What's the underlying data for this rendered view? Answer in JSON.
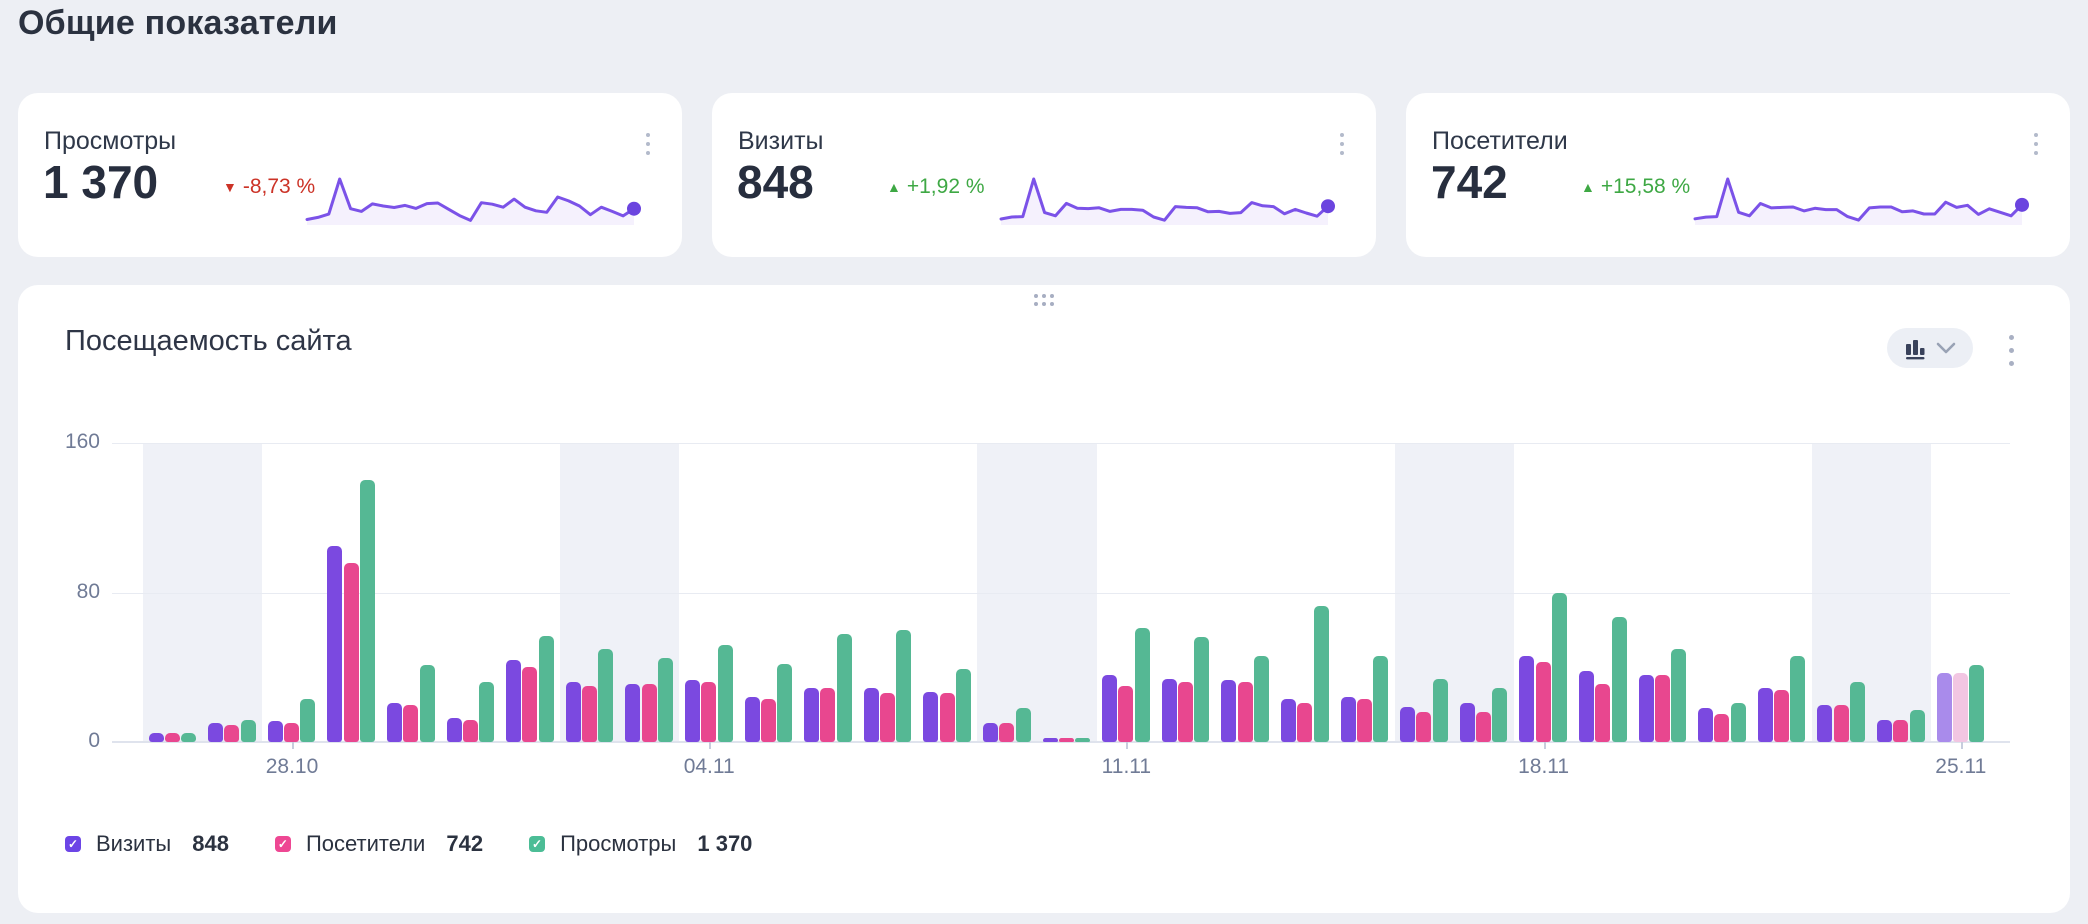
{
  "page": {
    "title": "Общие показатели"
  },
  "cards": [
    {
      "label": "Просмотры",
      "value": "1 370",
      "delta": "-8,73 %",
      "direction": "down",
      "spark_series": "Просмотры"
    },
    {
      "label": "Визиты",
      "value": "848",
      "delta": "+1,92 %",
      "direction": "up",
      "spark_series": "Визиты"
    },
    {
      "label": "Посетители",
      "value": "742",
      "delta": "+15,58 %",
      "direction": "up",
      "spark_series": "Посетители"
    }
  ],
  "panel": {
    "title": "Посещаемость сайта"
  },
  "legend": [
    {
      "label": "Визиты",
      "value": "848",
      "color": "#6C45E6"
    },
    {
      "label": "Посетители",
      "value": "742",
      "color": "#EE4793"
    },
    {
      "label": "Просмотры",
      "value": "1 370",
      "color": "#4CBD96"
    }
  ],
  "chart_data": {
    "type": "bar",
    "title": "Посещаемость сайта",
    "categories": [
      "26.10",
      "27.10",
      "28.10",
      "29.10",
      "30.10",
      "31.10",
      "01.11",
      "02.11",
      "03.11",
      "04.11",
      "05.11",
      "06.11",
      "07.11",
      "08.11",
      "09.11",
      "10.11",
      "11.11",
      "12.11",
      "13.11",
      "14.11",
      "15.11",
      "16.11",
      "17.11",
      "18.11",
      "19.11",
      "20.11",
      "21.11",
      "22.11",
      "23.11",
      "24.11",
      "25.11"
    ],
    "series": [
      {
        "name": "Визиты",
        "color": "#7B49E0",
        "values": [
          5,
          10,
          11,
          105,
          21,
          13,
          44,
          32,
          31,
          33,
          24,
          29,
          29,
          27,
          10,
          2,
          36,
          34,
          33,
          23,
          24,
          19,
          21,
          46,
          38,
          36,
          18,
          29,
          20,
          12,
          37
        ]
      },
      {
        "name": "Посетители",
        "color": "#E8478F",
        "values": [
          5,
          9,
          10,
          96,
          20,
          12,
          40,
          30,
          31,
          32,
          23,
          29,
          26,
          26,
          10,
          2,
          30,
          32,
          32,
          21,
          23,
          16,
          16,
          43,
          31,
          36,
          15,
          28,
          20,
          12,
          37
        ]
      },
      {
        "name": "Просмотры",
        "color": "#55B894",
        "values": [
          5,
          12,
          23,
          140,
          41,
          32,
          57,
          50,
          45,
          52,
          42,
          58,
          60,
          39,
          18,
          2,
          61,
          56,
          46,
          73,
          46,
          34,
          29,
          80,
          67,
          50,
          21,
          46,
          32,
          17,
          41
        ]
      }
    ],
    "ylim": [
      0,
      160
    ],
    "yticks": [
      0,
      80,
      160
    ],
    "xtick_labels": [
      "28.10",
      "04.11",
      "11.11",
      "18.11",
      "25.11"
    ],
    "xtick_indices": [
      2,
      9,
      16,
      23,
      30
    ],
    "weekend_band_start_indices": [
      0,
      7,
      14,
      21,
      28
    ],
    "partial_day_index": 30,
    "partial_colors": {
      "Визиты": "#A98BEB",
      "Посетители": "#F2C6E2"
    },
    "grid": true,
    "legend_position": "bottom"
  }
}
